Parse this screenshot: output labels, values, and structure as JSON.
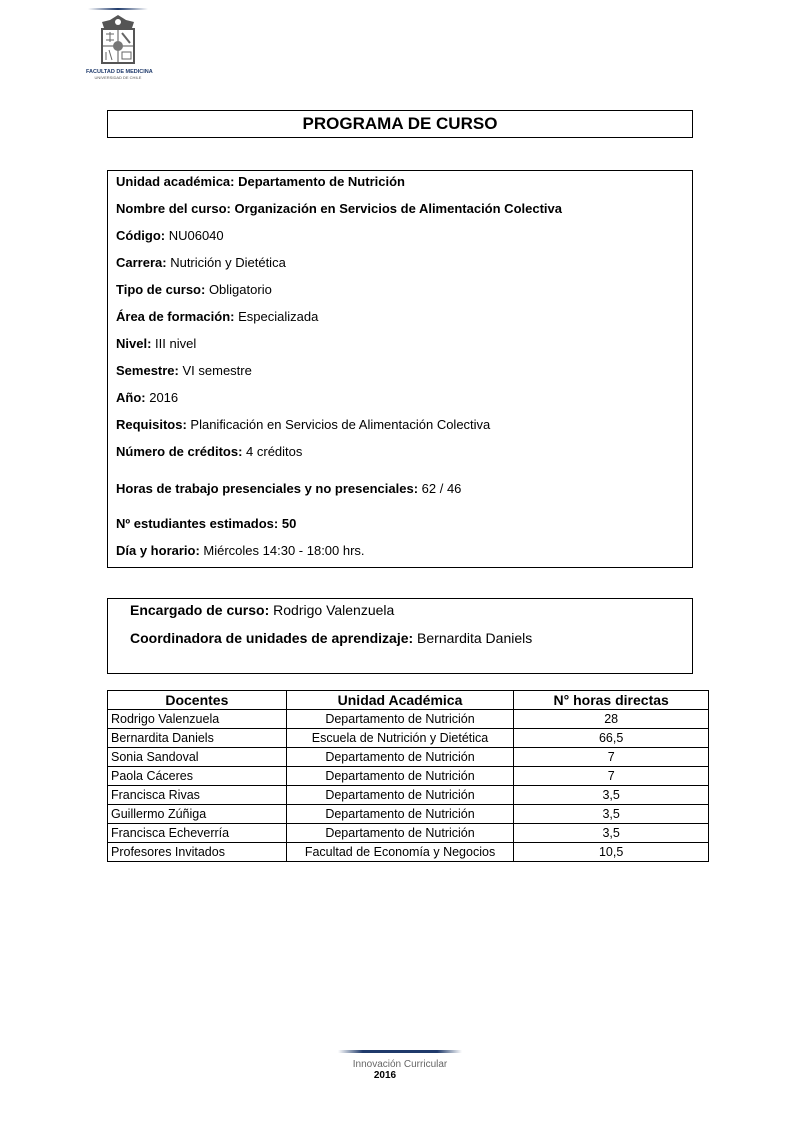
{
  "logo": {
    "line1": "FACULTAD DE MEDICINA",
    "line2": "UNIVERSIDAD DE CHILE"
  },
  "title": "PROGRAMA DE CURSO",
  "info": [
    {
      "label": "Unidad académica:",
      "value": " Departamento de Nutrición"
    },
    {
      "label": "Nombre del curso:",
      "value": " Organización en Servicios de Alimentación Colectiva"
    },
    {
      "label": "Código:",
      "value": " NU06040"
    },
    {
      "label": "Carrera:",
      "value": " Nutrición y Dietética"
    },
    {
      "label": "Tipo de curso:",
      "value": " Obligatorio"
    },
    {
      "label": "Área de formación:",
      "value": " Especializada"
    },
    {
      "label": "Nivel:",
      "value": " III nivel"
    },
    {
      "label": "Semestre:",
      "value": " VI semestre"
    },
    {
      "label": "Año:",
      "value": " 2016"
    },
    {
      "label": "Requisitos:",
      "value": " Planificación en Servicios de Alimentación Colectiva"
    },
    {
      "label": "Número de créditos:",
      "value": " 4 créditos"
    },
    {
      "label": "Horas de trabajo presenciales y no presenciales:",
      "value": " 62 / 46"
    },
    {
      "label": "Nº estudiantes estimados:",
      "value": " 50"
    },
    {
      "label": "Día y horario:",
      "value": " Miércoles 14:30 - 18:00 hrs."
    }
  ],
  "encargado": {
    "label": "Encargado de curso:",
    "value": " Rodrigo Valenzuela"
  },
  "coordinadora": {
    "label": "Coordinadora de unidades de aprendizaje:",
    "value": " Bernardita Daniels"
  },
  "table": {
    "headers": [
      "Docentes",
      "Unidad Académica",
      "N° horas directas"
    ],
    "rows": [
      [
        "Rodrigo Valenzuela",
        "Departamento de Nutrición",
        "28"
      ],
      [
        "Bernardita Daniels",
        "Escuela de Nutrición y Dietética",
        "66,5"
      ],
      [
        "Sonia Sandoval",
        "Departamento de Nutrición",
        "7"
      ],
      [
        "Paola Cáceres",
        "Departamento de Nutrición",
        "7"
      ],
      [
        "Francisca Rivas",
        "Departamento de Nutrición",
        "3,5"
      ],
      [
        "Guillermo Zúñiga",
        "Departamento de Nutrición",
        "3,5"
      ],
      [
        "Francisca Echeverría",
        "Departamento de Nutrición",
        "3,5"
      ],
      [
        "Profesores Invitados",
        "Facultad de Economía y Negocios",
        "10,5"
      ]
    ]
  },
  "footer": {
    "line1": "Innovación Curricular",
    "line2": "2016"
  }
}
